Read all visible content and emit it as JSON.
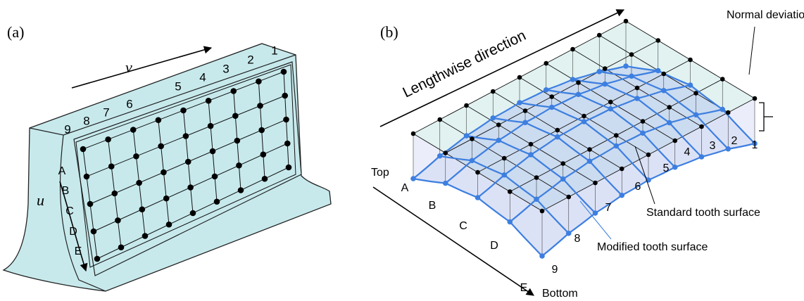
{
  "panel_a": {
    "label": "(a)",
    "v_label": "v",
    "u_label": "u",
    "columns": [
      "1",
      "2",
      "3",
      "4",
      "5",
      "6",
      "7",
      "8",
      "9"
    ],
    "rows": [
      "A",
      "B",
      "C",
      "D",
      "E"
    ]
  },
  "panel_b": {
    "label": "(b)",
    "lengthwise": "Lengthwise direction",
    "top": "Top",
    "bottom": "Bottom",
    "normal_deviation": "Normal deviation",
    "standard": "Standard tooth surface",
    "modified": "Modified tooth surface",
    "columns": [
      "1",
      "2",
      "3",
      "4",
      "5",
      "6",
      "7",
      "8",
      "9"
    ],
    "rows": [
      "A",
      "B",
      "C",
      "D",
      "E"
    ]
  }
}
